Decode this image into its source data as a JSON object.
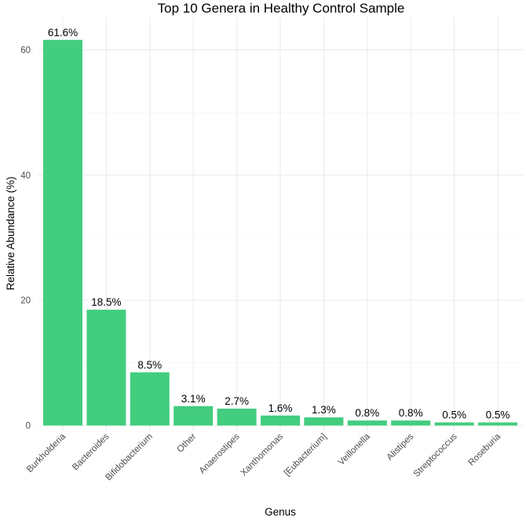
{
  "chart_data": {
    "type": "bar",
    "title": "Top 10 Genera in Healthy Control Sample",
    "xlabel": "Genus",
    "ylabel": "Relative Abundance (%)",
    "categories": [
      "Burkholderia",
      "Bacteroides",
      "Bifidobacterium",
      "Other",
      "Anaerostipes",
      "Xanthomonas",
      "[Eubacterium]",
      "Veillonella",
      "Alistipes",
      "Streptococcus",
      "Roseburia"
    ],
    "values": [
      61.6,
      18.5,
      8.5,
      3.1,
      2.7,
      1.6,
      1.3,
      0.8,
      0.8,
      0.5,
      0.5
    ],
    "labels": [
      "61.6%",
      "18.5%",
      "8.5%",
      "3.1%",
      "2.7%",
      "1.6%",
      "1.3%",
      "0.8%",
      "0.8%",
      "0.5%",
      "0.5%"
    ],
    "yticks": [
      0,
      20,
      40,
      60
    ],
    "ylim": [
      0,
      64.7
    ],
    "bar_color": "#42cd7f",
    "grid": true,
    "legend": "none"
  }
}
